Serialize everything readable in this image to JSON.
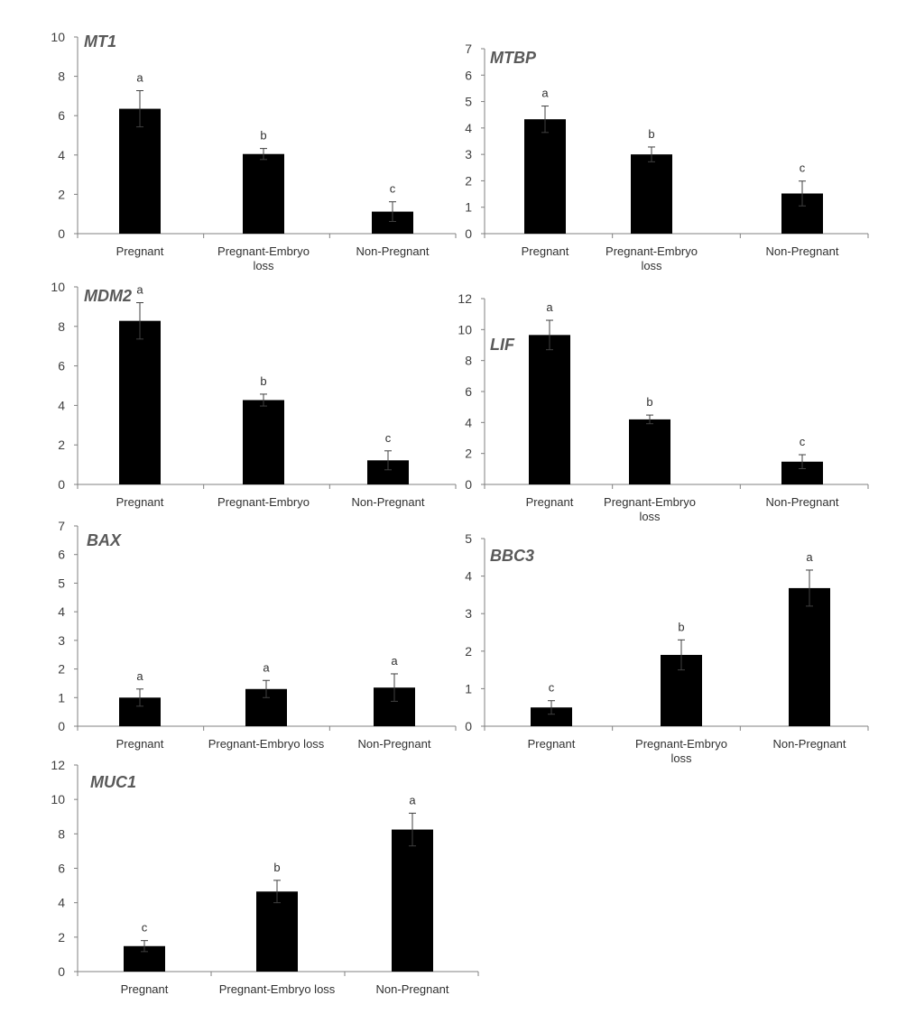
{
  "chart_data": [
    {
      "type": "bar",
      "title": "MT1",
      "categories": [
        "Pregnant",
        "Pregnant-Embryo\nloss",
        "Non-Pregnant"
      ],
      "values": [
        6.35,
        4.05,
        1.12
      ],
      "errors": [
        0.92,
        0.28,
        0.5
      ],
      "significance": [
        "a",
        "b",
        "c"
      ],
      "ylim": [
        0,
        10
      ],
      "yticks": [
        0,
        2,
        4,
        6,
        8,
        10
      ]
    },
    {
      "type": "bar",
      "title": "MTBP",
      "categories": [
        "Pregnant",
        "Pregnant-Embryo\nloss",
        "Non-Pregnant"
      ],
      "values": [
        4.33,
        3.0,
        1.52
      ],
      "errors": [
        0.5,
        0.28,
        0.47
      ],
      "significance": [
        "a",
        "b",
        "c"
      ],
      "ylim": [
        0,
        7
      ],
      "yticks": [
        0,
        1,
        2,
        3,
        4,
        5,
        6,
        7
      ]
    },
    {
      "type": "bar",
      "title": "MDM2",
      "categories": [
        "Pregnant",
        "Pregnant-Embryo",
        "Non-Pregnant"
      ],
      "values": [
        8.28,
        4.27,
        1.22
      ],
      "errors": [
        0.92,
        0.3,
        0.48
      ],
      "significance": [
        "a",
        "b",
        "c"
      ],
      "ylim": [
        0,
        10
      ],
      "yticks": [
        0,
        2,
        4,
        6,
        8,
        10
      ]
    },
    {
      "type": "bar",
      "title": "LIF",
      "categories": [
        "Pregnant",
        "Pregnant-Embryo\nloss",
        "Non-Pregnant"
      ],
      "values": [
        9.65,
        4.2,
        1.47
      ],
      "errors": [
        0.95,
        0.28,
        0.45
      ],
      "significance": [
        "a",
        "b",
        "c"
      ],
      "ylim": [
        0,
        12
      ],
      "yticks": [
        0,
        2,
        4,
        6,
        8,
        10,
        12
      ]
    },
    {
      "type": "bar",
      "title": "BAX",
      "categories": [
        "Pregnant",
        "Pregnant-Embryo loss",
        "Non-Pregnant"
      ],
      "values": [
        1.0,
        1.3,
        1.35
      ],
      "errors": [
        0.3,
        0.3,
        0.48
      ],
      "significance": [
        "a",
        "a",
        "a"
      ],
      "ylim": [
        0,
        7
      ],
      "yticks": [
        0,
        1,
        2,
        3,
        4,
        5,
        6,
        7
      ]
    },
    {
      "type": "bar",
      "title": "BBC3",
      "categories": [
        "Pregnant",
        "Pregnant-Embryo\nloss",
        "Non-Pregnant"
      ],
      "values": [
        0.5,
        1.9,
        3.68
      ],
      "errors": [
        0.18,
        0.4,
        0.48
      ],
      "significance": [
        "c",
        "b",
        "a"
      ],
      "ylim": [
        0,
        5
      ],
      "yticks": [
        0,
        1,
        2,
        3,
        4,
        5
      ]
    },
    {
      "type": "bar",
      "title": "MUC1",
      "categories": [
        "Pregnant",
        "Pregnant-Embryo loss",
        "Non-Pregnant"
      ],
      "values": [
        1.48,
        4.65,
        8.25
      ],
      "errors": [
        0.32,
        0.65,
        0.95
      ],
      "significance": [
        "c",
        "b",
        "a"
      ],
      "ylim": [
        0,
        12
      ],
      "yticks": [
        0,
        2,
        4,
        6,
        8,
        10,
        12
      ]
    }
  ]
}
